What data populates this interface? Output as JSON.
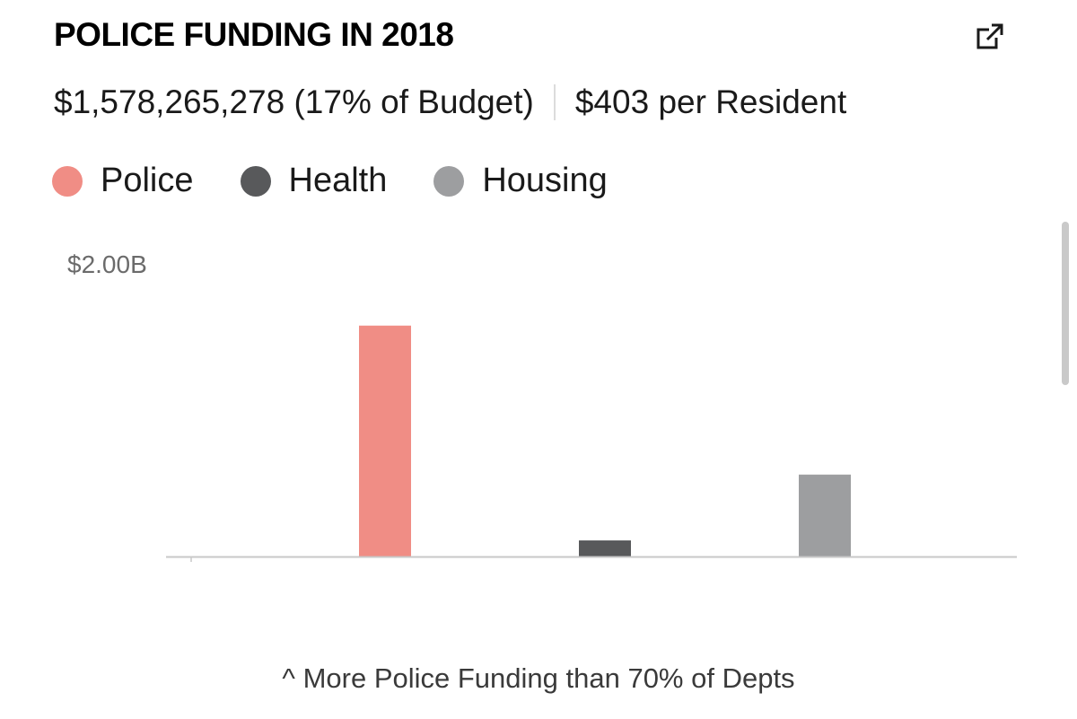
{
  "header": {
    "title": "POLICE FUNDING IN 2018",
    "total": "$1,578,265,278 (17% of Budget)",
    "per_resident": "$403 per Resident"
  },
  "legend": [
    {
      "label": "Police",
      "color": "#f08d85"
    },
    {
      "label": "Health",
      "color": "#58595b"
    },
    {
      "label": "Housing",
      "color": "#9d9ea0"
    }
  ],
  "footnote": "^ More Police Funding than 70% of Depts",
  "chart_data": {
    "type": "bar",
    "title": "POLICE FUNDING IN 2018",
    "categories": [
      "Police",
      "Health",
      "Housing"
    ],
    "values": [
      1578265278,
      110000000,
      560000000
    ],
    "colors": [
      "#f08d85",
      "#58595b",
      "#9d9ea0"
    ],
    "ylim": [
      0,
      2000000000
    ],
    "y_tick_labels": [
      {
        "value": 2000000000,
        "label": "$2.00B"
      }
    ],
    "xlabel": "",
    "ylabel": "",
    "grid": false,
    "legend_position": "top-left"
  }
}
